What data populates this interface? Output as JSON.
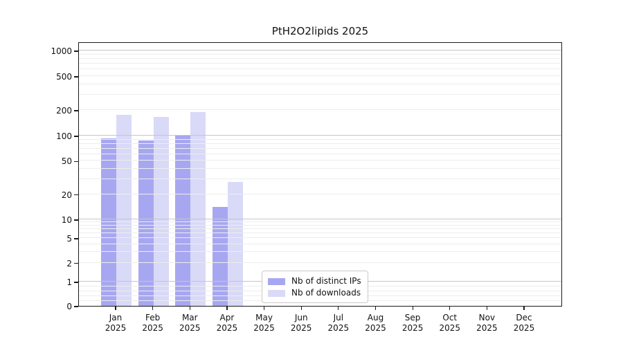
{
  "chart_data": {
    "type": "bar",
    "title": "PtH2O2lipids 2025",
    "categories": [
      "Jan 2025",
      "Feb 2025",
      "Mar 2025",
      "Apr 2025",
      "May 2025",
      "Jun 2025",
      "Jul 2025",
      "Aug 2025",
      "Sep 2025",
      "Oct 2025",
      "Nov 2025",
      "Dec 2025"
    ],
    "series": [
      {
        "name": "Nb of distinct IPs",
        "color": "#a7a7f1",
        "values": [
          92,
          88,
          100,
          14,
          0,
          0,
          0,
          0,
          0,
          0,
          0,
          0
        ]
      },
      {
        "name": "Nb of downloads",
        "color": "#d9d9f8",
        "values": [
          177,
          165,
          190,
          28,
          0,
          0,
          0,
          0,
          0,
          0,
          0,
          0
        ]
      }
    ],
    "xlabel": "",
    "ylabel": "",
    "yscale": "symlog",
    "yticks": [
      0,
      1,
      2,
      5,
      10,
      20,
      50,
      100,
      200,
      500,
      1000
    ],
    "ylim": [
      0,
      1200
    ],
    "grid": true,
    "grid_major_color": "#c6c6c6",
    "grid_minor_color": "#ededed",
    "legend_position": "lower center",
    "legend_entries": [
      "Nb of distinct IPs",
      "Nb of downloads"
    ]
  }
}
